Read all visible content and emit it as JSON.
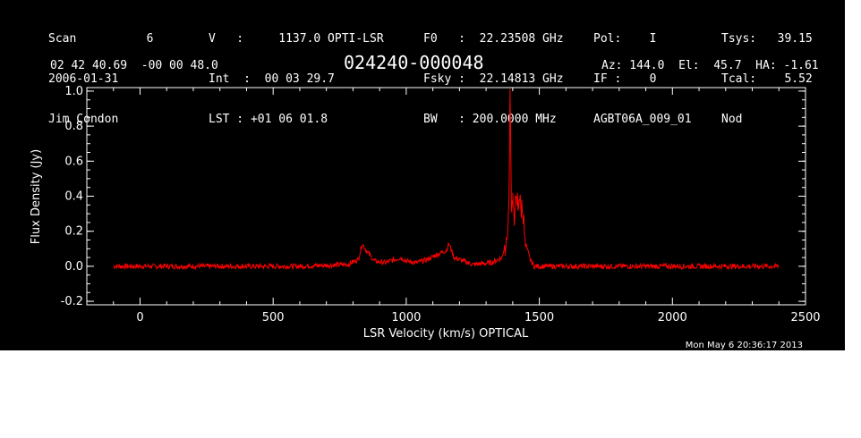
{
  "header": {
    "col1": [
      "Scan          6",
      "2006-01-31",
      "Jim Condon"
    ],
    "col2": [
      "V   :     1137.0 OPTI-LSR",
      "Int  :  00 03 29.7",
      "LST : +01 06 01.8"
    ],
    "col3": [
      "F0   :  22.23508 GHz",
      "Fsky :  22.14813 GHz",
      "BW   : 200.0000 MHz"
    ],
    "col4": [
      "Pol:    I",
      "IF :    0",
      "AGBT06A_009_01"
    ],
    "col5": [
      "Tsys:   39.15",
      "Tcal:    5.52",
      "Nod"
    ],
    "coords": "02 42 40.69  -00 00 48.0",
    "source": "024240-000048",
    "pointing": "Az: 144.0  El:  45.7  HA: -1.61"
  },
  "timestamp": "Mon May  6 20:36:17 2013",
  "chart_data": {
    "type": "line",
    "xlabel": "LSR Velocity (km/s) OPTICAL",
    "ylabel": "Flux Density (Jy)",
    "xlim": [
      -200,
      2500
    ],
    "ylim": [
      -0.22,
      1.02
    ],
    "xticks": [
      0,
      500,
      1000,
      1500,
      2000,
      2500
    ],
    "yticks": [
      -0.2,
      0.0,
      0.2,
      0.4,
      0.6,
      0.8,
      1.0
    ],
    "xtick_labels": [
      "0",
      "500",
      "1000",
      "1500",
      "2000",
      "2500"
    ],
    "ytick_labels": [
      "-0.2",
      "0.0",
      "0.2",
      "0.4",
      "0.6",
      "0.8",
      "1.0"
    ],
    "line_color": "#ff0000",
    "axis_color": "#ffffff",
    "background": "#000000",
    "series": [
      {
        "x": [
          -100,
          0,
          200,
          400,
          600,
          780,
          820,
          835,
          850,
          880,
          920,
          960,
          980,
          1000,
          1040,
          1080,
          1120,
          1150,
          1160,
          1180,
          1250,
          1320,
          1360,
          1380,
          1385,
          1390,
          1395,
          1400,
          1405,
          1410,
          1420,
          1430,
          1440,
          1450,
          1465,
          1480,
          1600,
          1800,
          2000,
          2200,
          2400
        ],
        "y": [
          0.0,
          0.0,
          0.0,
          0.0,
          0.0,
          0.01,
          0.04,
          0.13,
          0.09,
          0.03,
          0.02,
          0.04,
          0.05,
          0.03,
          0.02,
          0.04,
          0.07,
          0.09,
          0.13,
          0.05,
          0.01,
          0.02,
          0.05,
          0.18,
          0.25,
          0.98,
          0.35,
          0.42,
          0.22,
          0.4,
          0.37,
          0.35,
          0.28,
          0.12,
          0.04,
          0.0,
          0.0,
          0.0,
          0.0,
          0.0,
          0.0
        ]
      }
    ]
  }
}
